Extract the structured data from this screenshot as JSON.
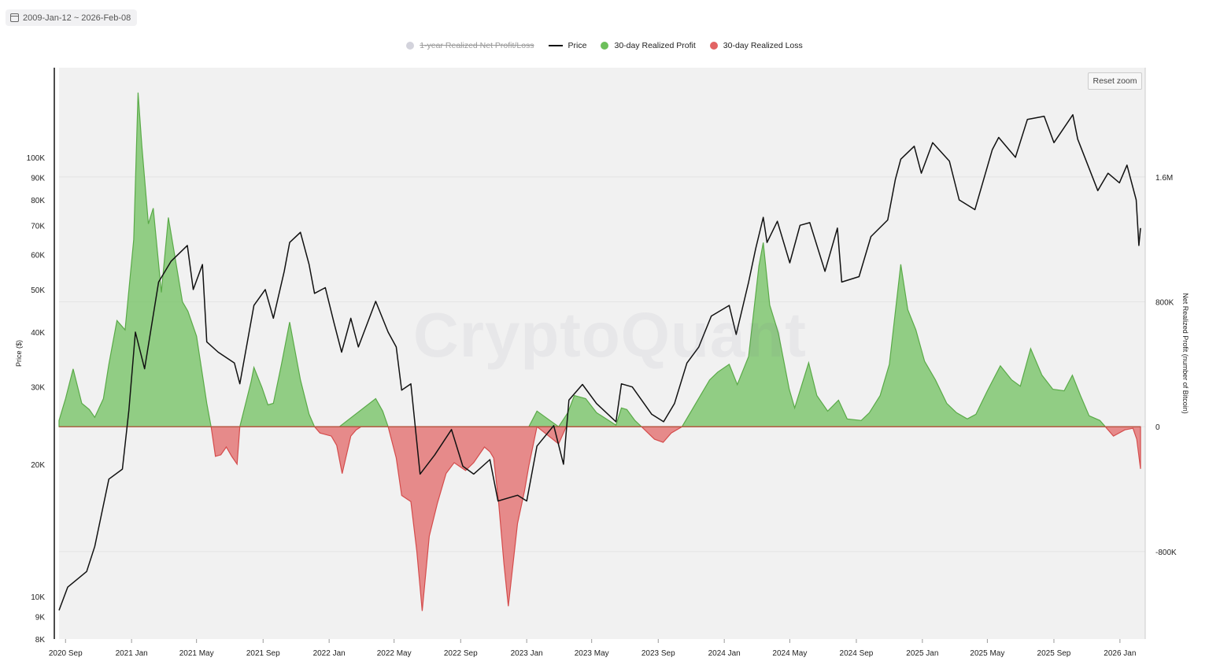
{
  "date_range": "2009-Jan-12 ~ 2026-Feb-08",
  "reset_zoom": "Reset zoom",
  "watermark": "CryptoQuant",
  "legend": [
    {
      "label": "1-year Realized Net Profit/Loss",
      "color": "#d3d3dc",
      "enabled": false,
      "symbol": "dot"
    },
    {
      "label": "Price",
      "color": "#111111",
      "enabled": true,
      "symbol": "line"
    },
    {
      "label": "30-day Realized Profit",
      "color": "#6cbf5a",
      "enabled": true,
      "symbol": "dot"
    },
    {
      "label": "30-day Realized Loss",
      "color": "#e26363",
      "enabled": true,
      "symbol": "dot"
    }
  ],
  "chart_data": {
    "type": "area",
    "x_tick_labels": [
      "2020 Sep",
      "2021 Jan",
      "2021 May",
      "2021 Sep",
      "2022 Jan",
      "2022 May",
      "2022 Sep",
      "2023 Jan",
      "2023 May",
      "2023 Sep",
      "2024 Jan",
      "2024 May",
      "2024 Sep",
      "2025 Jan",
      "2025 May",
      "2025 Sep",
      "2026 Jan"
    ],
    "left_axis": {
      "label": "Price ($)",
      "scale": "log",
      "ticks": [
        "8K",
        "9K",
        "10K",
        "20K",
        "30K",
        "40K",
        "50K",
        "60K",
        "70K",
        "80K",
        "90K",
        "100K"
      ],
      "tick_values": [
        8000,
        9000,
        10000,
        20000,
        30000,
        40000,
        50000,
        60000,
        70000,
        80000,
        90000,
        100000
      ],
      "range": [
        8000,
        160000
      ]
    },
    "right_axis": {
      "label": "Net Realized Profit (number of Bitcoin)",
      "ticks": [
        "1.6M",
        "800K",
        "0",
        "-800K"
      ],
      "tick_values": [
        1600000,
        800000,
        0,
        -800000
      ],
      "range": [
        -1360000,
        2300000
      ]
    },
    "x_range": [
      "2020-08-20",
      "2026-02-08"
    ],
    "grid": true,
    "legend_position": "top-center",
    "series": [
      {
        "name": "Price",
        "color": "#111111",
        "points": [
          [
            "2020-08-20",
            9300
          ],
          [
            "2020-09-05",
            10500
          ],
          [
            "2020-10-10",
            11400
          ],
          [
            "2020-10-25",
            13000
          ],
          [
            "2020-11-20",
            18500
          ],
          [
            "2020-12-15",
            19500
          ],
          [
            "2020-12-27",
            26500
          ],
          [
            "2021-01-08",
            40000
          ],
          [
            "2021-01-25",
            33000
          ],
          [
            "2021-02-20",
            52000
          ],
          [
            "2021-03-15",
            58000
          ],
          [
            "2021-04-14",
            63000
          ],
          [
            "2021-04-25",
            50000
          ],
          [
            "2021-05-12",
            57000
          ],
          [
            "2021-05-20",
            38000
          ],
          [
            "2021-06-10",
            36000
          ],
          [
            "2021-07-10",
            34000
          ],
          [
            "2021-07-20",
            30500
          ],
          [
            "2021-08-15",
            46000
          ],
          [
            "2021-09-05",
            50000
          ],
          [
            "2021-09-20",
            43000
          ],
          [
            "2021-10-10",
            55000
          ],
          [
            "2021-10-20",
            64000
          ],
          [
            "2021-11-09",
            67500
          ],
          [
            "2021-11-25",
            57000
          ],
          [
            "2021-12-05",
            49000
          ],
          [
            "2021-12-25",
            50500
          ],
          [
            "2022-01-10",
            42000
          ],
          [
            "2022-01-24",
            36000
          ],
          [
            "2022-02-10",
            43000
          ],
          [
            "2022-02-24",
            37000
          ],
          [
            "2022-03-28",
            47000
          ],
          [
            "2022-04-20",
            40000
          ],
          [
            "2022-05-05",
            37000
          ],
          [
            "2022-05-15",
            29500
          ],
          [
            "2022-06-01",
            30500
          ],
          [
            "2022-06-18",
            19000
          ],
          [
            "2022-07-15",
            21000
          ],
          [
            "2022-08-15",
            24000
          ],
          [
            "2022-09-05",
            19800
          ],
          [
            "2022-09-25",
            19000
          ],
          [
            "2022-10-25",
            20500
          ],
          [
            "2022-11-09",
            16500
          ],
          [
            "2022-12-15",
            17000
          ],
          [
            "2023-01-01",
            16500
          ],
          [
            "2023-01-20",
            22000
          ],
          [
            "2023-02-20",
            24500
          ],
          [
            "2023-03-10",
            20000
          ],
          [
            "2023-03-20",
            28000
          ],
          [
            "2023-04-14",
            30400
          ],
          [
            "2023-05-10",
            27500
          ],
          [
            "2023-06-15",
            25000
          ],
          [
            "2023-06-25",
            30500
          ],
          [
            "2023-07-15",
            30000
          ],
          [
            "2023-08-20",
            26000
          ],
          [
            "2023-09-11",
            25000
          ],
          [
            "2023-10-01",
            27500
          ],
          [
            "2023-10-24",
            34000
          ],
          [
            "2023-11-15",
            37000
          ],
          [
            "2023-12-08",
            43500
          ],
          [
            "2024-01-10",
            46000
          ],
          [
            "2024-01-23",
            39500
          ],
          [
            "2024-02-15",
            52000
          ],
          [
            "2024-02-28",
            62000
          ],
          [
            "2024-03-13",
            73000
          ],
          [
            "2024-03-20",
            64000
          ],
          [
            "2024-04-08",
            71500
          ],
          [
            "2024-05-01",
            57500
          ],
          [
            "2024-05-20",
            70000
          ],
          [
            "2024-06-07",
            71000
          ],
          [
            "2024-07-05",
            55000
          ],
          [
            "2024-07-28",
            69000
          ],
          [
            "2024-08-05",
            52000
          ],
          [
            "2024-09-06",
            53500
          ],
          [
            "2024-09-28",
            66000
          ],
          [
            "2024-10-29",
            72000
          ],
          [
            "2024-11-12",
            89000
          ],
          [
            "2024-11-22",
            99000
          ],
          [
            "2024-12-17",
            106000
          ],
          [
            "2024-12-30",
            92000
          ],
          [
            "2025-01-20",
            108000
          ],
          [
            "2025-02-20",
            98000
          ],
          [
            "2025-03-10",
            80000
          ],
          [
            "2025-04-08",
            76000
          ],
          [
            "2025-05-10",
            104000
          ],
          [
            "2025-05-22",
            111000
          ],
          [
            "2025-06-22",
            100000
          ],
          [
            "2025-07-14",
            122000
          ],
          [
            "2025-08-14",
            124000
          ],
          [
            "2025-09-01",
            108000
          ],
          [
            "2025-10-06",
            125000
          ],
          [
            "2025-10-15",
            110000
          ],
          [
            "2025-11-21",
            84000
          ],
          [
            "2025-12-10",
            92000
          ],
          [
            "2025-12-31",
            87500
          ],
          [
            "2026-01-14",
            96000
          ],
          [
            "2026-01-31",
            80000
          ],
          [
            "2026-02-05",
            63000
          ],
          [
            "2026-02-08",
            69000
          ]
        ]
      },
      {
        "name": "30-day Realized Profit",
        "color": "#6cbf5a",
        "points": [
          [
            "2020-08-20",
            40000
          ],
          [
            "2020-09-01",
            180000
          ],
          [
            "2020-09-15",
            370000
          ],
          [
            "2020-10-01",
            150000
          ],
          [
            "2020-10-15",
            110000
          ],
          [
            "2020-10-25",
            60000
          ],
          [
            "2020-11-10",
            180000
          ],
          [
            "2020-11-20",
            400000
          ],
          [
            "2020-12-05",
            680000
          ],
          [
            "2020-12-20",
            620000
          ],
          [
            "2021-01-05",
            1200000
          ],
          [
            "2021-01-13",
            2140000
          ],
          [
            "2021-01-20",
            1800000
          ],
          [
            "2021-02-01",
            1300000
          ],
          [
            "2021-02-10",
            1400000
          ],
          [
            "2021-02-25",
            860000
          ],
          [
            "2021-03-10",
            1340000
          ],
          [
            "2021-03-25",
            1030000
          ],
          [
            "2021-04-05",
            800000
          ],
          [
            "2021-04-15",
            740000
          ],
          [
            "2021-05-01",
            580000
          ],
          [
            "2021-05-20",
            150000
          ],
          [
            "2021-05-28",
            0
          ],
          [
            "2021-07-20",
            0
          ],
          [
            "2021-08-10",
            290000
          ],
          [
            "2021-08-15",
            380000
          ],
          [
            "2021-08-30",
            250000
          ],
          [
            "2021-09-10",
            140000
          ],
          [
            "2021-09-20",
            150000
          ],
          [
            "2021-10-05",
            400000
          ],
          [
            "2021-10-20",
            670000
          ],
          [
            "2021-11-09",
            300000
          ],
          [
            "2021-11-25",
            80000
          ],
          [
            "2021-12-05",
            0
          ],
          [
            "2022-01-20",
            0
          ],
          [
            "2022-03-28",
            180000
          ],
          [
            "2022-04-10",
            100000
          ],
          [
            "2022-04-20",
            0
          ],
          [
            "2023-01-05",
            0
          ],
          [
            "2023-01-20",
            100000
          ],
          [
            "2023-02-05",
            60000
          ],
          [
            "2023-03-01",
            0
          ],
          [
            "2023-03-18",
            90000
          ],
          [
            "2023-03-30",
            200000
          ],
          [
            "2023-04-20",
            180000
          ],
          [
            "2023-05-10",
            90000
          ],
          [
            "2023-06-15",
            10000
          ],
          [
            "2023-06-25",
            120000
          ],
          [
            "2023-07-05",
            110000
          ],
          [
            "2023-07-20",
            40000
          ],
          [
            "2023-08-01",
            0
          ],
          [
            "2023-10-15",
            0
          ],
          [
            "2023-11-01",
            100000
          ],
          [
            "2023-12-05",
            300000
          ],
          [
            "2023-12-20",
            350000
          ],
          [
            "2024-01-10",
            400000
          ],
          [
            "2024-01-25",
            270000
          ],
          [
            "2024-02-15",
            450000
          ],
          [
            "2024-03-05",
            1030000
          ],
          [
            "2024-03-13",
            1180000
          ],
          [
            "2024-03-25",
            780000
          ],
          [
            "2024-04-10",
            600000
          ],
          [
            "2024-04-30",
            240000
          ],
          [
            "2024-05-10",
            120000
          ],
          [
            "2024-06-05",
            410000
          ],
          [
            "2024-06-20",
            200000
          ],
          [
            "2024-07-10",
            100000
          ],
          [
            "2024-07-30",
            170000
          ],
          [
            "2024-08-15",
            50000
          ],
          [
            "2024-09-10",
            40000
          ],
          [
            "2024-09-25",
            90000
          ],
          [
            "2024-10-15",
            200000
          ],
          [
            "2024-11-01",
            400000
          ],
          [
            "2024-11-22",
            1040000
          ],
          [
            "2024-12-05",
            750000
          ],
          [
            "2024-12-20",
            620000
          ],
          [
            "2025-01-05",
            420000
          ],
          [
            "2025-01-25",
            300000
          ],
          [
            "2025-02-15",
            150000
          ],
          [
            "2025-03-05",
            90000
          ],
          [
            "2025-03-25",
            50000
          ],
          [
            "2025-04-10",
            80000
          ],
          [
            "2025-05-01",
            230000
          ],
          [
            "2025-05-25",
            390000
          ],
          [
            "2025-06-15",
            300000
          ],
          [
            "2025-07-01",
            260000
          ],
          [
            "2025-07-20",
            500000
          ],
          [
            "2025-08-10",
            330000
          ],
          [
            "2025-08-30",
            240000
          ],
          [
            "2025-09-20",
            230000
          ],
          [
            "2025-10-05",
            330000
          ],
          [
            "2025-10-20",
            200000
          ],
          [
            "2025-11-05",
            70000
          ],
          [
            "2025-11-25",
            40000
          ],
          [
            "2025-12-05",
            0
          ]
        ]
      },
      {
        "name": "30-day Realized Loss",
        "color": "#e26363",
        "points": [
          [
            "2021-05-28",
            0
          ],
          [
            "2021-06-05",
            -190000
          ],
          [
            "2021-06-15",
            -180000
          ],
          [
            "2021-06-25",
            -130000
          ],
          [
            "2021-07-05",
            -190000
          ],
          [
            "2021-07-15",
            -240000
          ],
          [
            "2021-07-20",
            0
          ],
          [
            "2021-12-05",
            0
          ],
          [
            "2021-12-15",
            -40000
          ],
          [
            "2022-01-05",
            -60000
          ],
          [
            "2022-01-15",
            -120000
          ],
          [
            "2022-01-25",
            -300000
          ],
          [
            "2022-02-10",
            -60000
          ],
          [
            "2022-02-20",
            -20000
          ],
          [
            "2022-03-01",
            0
          ],
          [
            "2022-04-20",
            0
          ],
          [
            "2022-05-05",
            -200000
          ],
          [
            "2022-05-15",
            -440000
          ],
          [
            "2022-06-01",
            -480000
          ],
          [
            "2022-06-12",
            -800000
          ],
          [
            "2022-06-22",
            -1180000
          ],
          [
            "2022-07-05",
            -700000
          ],
          [
            "2022-07-20",
            -490000
          ],
          [
            "2022-08-05",
            -300000
          ],
          [
            "2022-08-20",
            -230000
          ],
          [
            "2022-09-10",
            -280000
          ],
          [
            "2022-09-25",
            -230000
          ],
          [
            "2022-10-15",
            -130000
          ],
          [
            "2022-10-25",
            -160000
          ],
          [
            "2022-11-01",
            -200000
          ],
          [
            "2022-11-10",
            -480000
          ],
          [
            "2022-11-20",
            -880000
          ],
          [
            "2022-11-28",
            -1150000
          ],
          [
            "2022-12-15",
            -620000
          ],
          [
            "2022-12-28",
            -410000
          ],
          [
            "2023-01-05",
            -250000
          ],
          [
            "2023-01-20",
            0
          ],
          [
            "2023-03-01",
            -110000
          ],
          [
            "2023-03-15",
            0
          ],
          [
            "2023-08-01",
            0
          ],
          [
            "2023-08-25",
            -80000
          ],
          [
            "2023-09-10",
            -100000
          ],
          [
            "2023-09-25",
            -40000
          ],
          [
            "2023-10-15",
            0
          ],
          [
            "2025-12-05",
            0
          ],
          [
            "2025-12-20",
            -60000
          ],
          [
            "2026-01-10",
            -20000
          ],
          [
            "2026-01-25",
            -10000
          ],
          [
            "2026-02-01",
            -80000
          ],
          [
            "2026-02-08",
            -270000
          ]
        ]
      }
    ]
  }
}
